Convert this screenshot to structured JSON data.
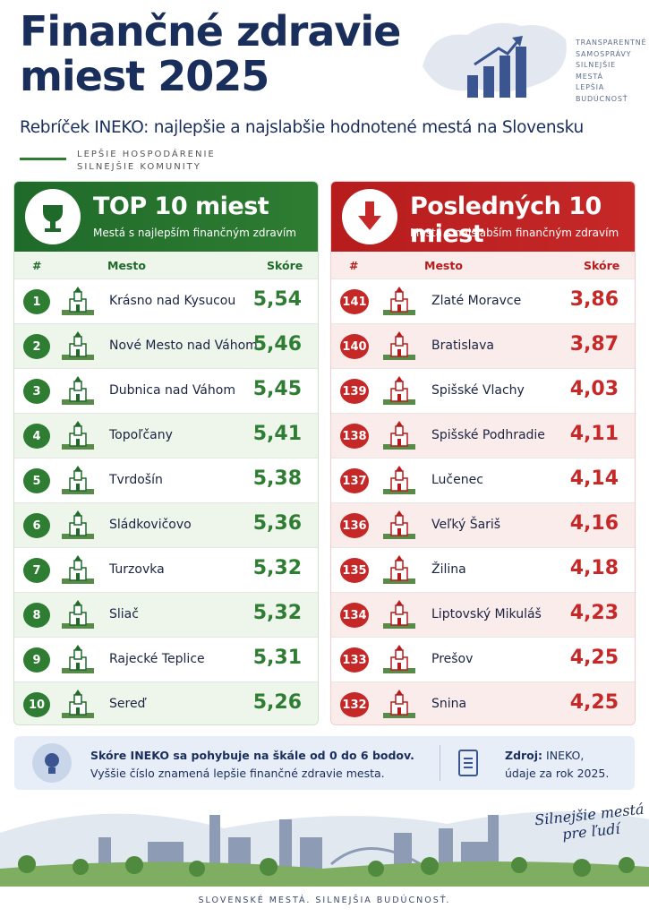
{
  "header": {
    "title_lines": [
      "Finančné zdravie",
      "miest 2025"
    ],
    "subtitle": "Rebríček INEKO: najlepšie a najslabšie hodnotené mestá na Slovensku",
    "tagline": [
      "LEPŠIE HOSPODÁRENIE",
      "SILNEJŠIE KOMUNITY"
    ],
    "badge": [
      "TRANSPARENTNÉ",
      "SAMOSPRÁVY",
      "SILNEJŠIE",
      "MESTÁ",
      "LEPŠIA",
      "BUDÚCNOSŤ"
    ]
  },
  "top": {
    "title": "TOP 10 miest",
    "subtitle": "Mestá s najlepším finančným zdravím",
    "columns": [
      "#",
      "Mesto",
      "Skóre"
    ],
    "rows": [
      [
        1,
        "Krásno nad Kysucou",
        "5,54"
      ],
      [
        2,
        "Nové Mesto nad Váhom",
        "5,46"
      ],
      [
        3,
        "Dubnica nad Váhom",
        "5,45"
      ],
      [
        4,
        "Topoľčany",
        "5,41"
      ],
      [
        5,
        "Tvrdošín",
        "5,38"
      ],
      [
        6,
        "Sládkovičovo",
        "5,36"
      ],
      [
        7,
        "Turzovka",
        "5,32"
      ],
      [
        8,
        "Sliač",
        "5,32"
      ],
      [
        9,
        "Rajecké Teplice",
        "5,31"
      ],
      [
        10,
        "Sereď",
        "5,26"
      ]
    ]
  },
  "bottom": {
    "title": "Posledných 10 miest",
    "subtitle": "Mestá s najslabším finančným zdravím",
    "columns": [
      "#",
      "Mesto",
      "Skóre"
    ],
    "rows": [
      [
        141,
        "Zlaté Moravce",
        "3,86"
      ],
      [
        140,
        "Bratislava",
        "3,87"
      ],
      [
        139,
        "Spišské Vlachy",
        "4,03"
      ],
      [
        138,
        "Spišské Podhradie",
        "4,11"
      ],
      [
        137,
        "Lučenec",
        "4,14"
      ],
      [
        136,
        "Veľký Šariš",
        "4,16"
      ],
      [
        135,
        "Žilina",
        "4,18"
      ],
      [
        134,
        "Liptovský Mikuláš",
        "4,23"
      ],
      [
        133,
        "Prešov",
        "4,25"
      ],
      [
        132,
        "Snina",
        "4,25"
      ]
    ]
  },
  "info": {
    "lines": [
      "Skóre INEKO sa pohybuje na škále od 0 do 6 bodov.",
      "Vyššie číslo znamená lepšie finančné zdravie mesta."
    ],
    "source_label": "Zdroj:",
    "source_lines": [
      "INEKO,",
      "údaje za rok 2025."
    ]
  },
  "slogan": [
    "Silnejšie mestá",
    "pre ľudí"
  ],
  "footer": "SLOVENSKÉ MESTÁ. SILNEJŠIA BUDÚCNOSŤ."
}
